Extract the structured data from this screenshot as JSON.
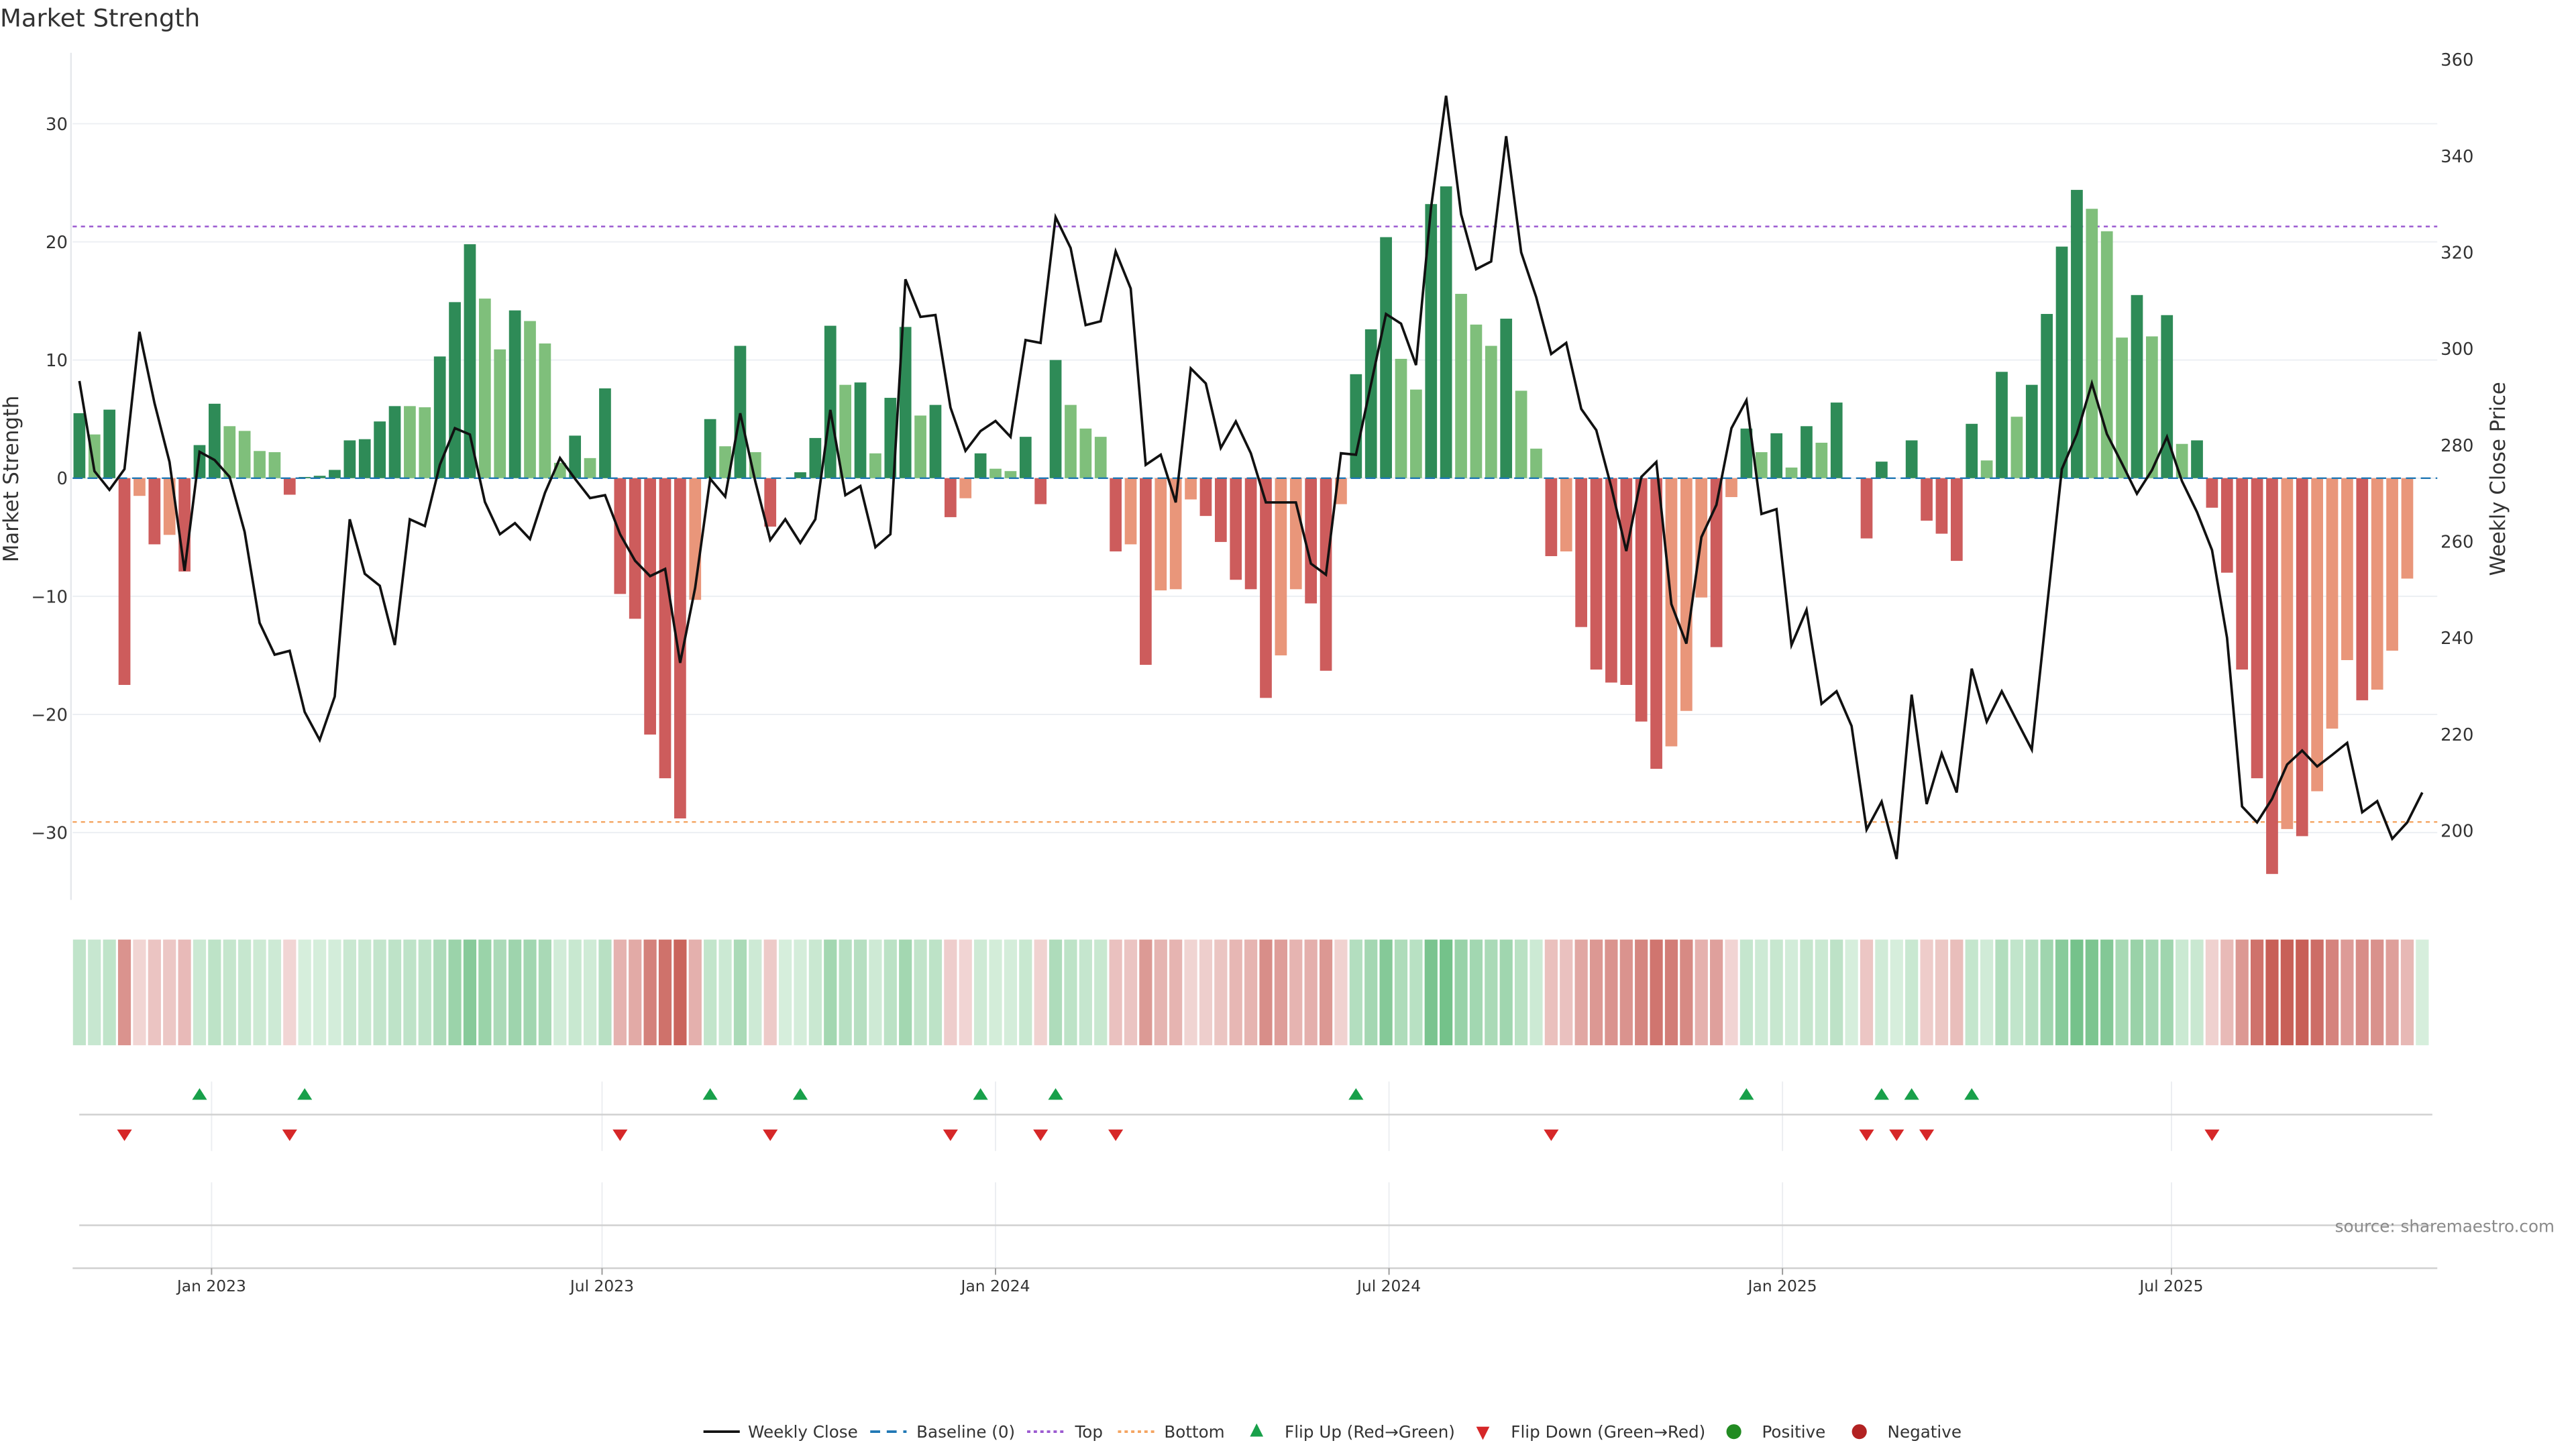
{
  "title": "Market Strength",
  "source": "source: sharemaestro.com",
  "colors": {
    "strong_green": "#2e8b57",
    "weak_green": "#7fbf7b",
    "strong_red": "#cd5c5c",
    "weak_red": "#e9967a",
    "line": "#111111",
    "baseline": "#1f77b4",
    "top": "#9b59d0",
    "bottom": "#f4a460",
    "flip_up": "#18a04a",
    "flip_down": "#d62728",
    "positive": "#228b22",
    "negative": "#b22222",
    "grid": "#eceff3"
  },
  "chart_data": {
    "type": "bar",
    "title": "Market Strength",
    "left_axis": {
      "label": "Market Strength",
      "range": [
        -35.7,
        36
      ],
      "ticks": [
        {
          "value": 30,
          "label": "30"
        },
        {
          "value": 20,
          "label": "20"
        },
        {
          "value": 10,
          "label": "10"
        },
        {
          "value": 0,
          "label": "0"
        },
        {
          "value": -10,
          "label": "−10"
        },
        {
          "value": -20,
          "label": "−20"
        },
        {
          "value": -30,
          "label": "−30"
        }
      ]
    },
    "right_axis": {
      "label": "Weekly Close Price",
      "range": [
        185.6,
        361.4
      ],
      "ticks": [
        {
          "value": 360,
          "label": "360"
        },
        {
          "value": 340,
          "label": "340"
        },
        {
          "value": 320,
          "label": "320"
        },
        {
          "value": 300,
          "label": "300"
        },
        {
          "value": 280,
          "label": "280"
        },
        {
          "value": 260,
          "label": "260"
        },
        {
          "value": 240,
          "label": "240"
        },
        {
          "value": 220,
          "label": "220"
        },
        {
          "value": 200,
          "label": "200"
        }
      ]
    },
    "x_axis": {
      "unit": "week index",
      "range": [
        -0.45,
        157
      ],
      "ticks": [
        {
          "week": 8.8,
          "label": "Jan 2023"
        },
        {
          "week": 34.8,
          "label": "Jul 2023"
        },
        {
          "week": 61.0,
          "label": "Jan 2024"
        },
        {
          "week": 87.2,
          "label": "Jul 2024"
        },
        {
          "week": 113.4,
          "label": "Jan 2025"
        },
        {
          "week": 139.3,
          "label": "Jul 2025"
        }
      ]
    },
    "grid": true,
    "top_level": 21.3,
    "bottom_level": -29.1,
    "strength": [
      5.5,
      3.7,
      5.8,
      -17.5,
      -1.5,
      -5.6,
      -4.8,
      -7.9,
      2.8,
      6.3,
      4.4,
      4.0,
      2.3,
      2.2,
      -1.4,
      0.1,
      0.2,
      0.7,
      3.2,
      3.3,
      4.8,
      6.1,
      6.1,
      6.0,
      10.3,
      14.9,
      19.8,
      15.2,
      10.9,
      14.2,
      13.3,
      11.4,
      1.3,
      3.6,
      1.7,
      7.6,
      -9.8,
      -11.9,
      -21.7,
      -25.4,
      -28.8,
      -10.3,
      5.0,
      2.7,
      11.2,
      2.2,
      -4.1,
      0,
      0.5,
      3.4,
      12.9,
      7.9,
      8.1,
      2.1,
      6.8,
      12.8,
      5.3,
      6.2,
      -3.3,
      -1.7,
      2.1,
      0.8,
      0.6,
      3.5,
      -2.2,
      10.0,
      6.2,
      4.2,
      3.5,
      -6.2,
      -5.6,
      -15.8,
      -9.5,
      -9.4,
      -1.8,
      -3.2,
      -5.4,
      -8.6,
      -9.4,
      -18.6,
      -15.0,
      -9.4,
      -10.6,
      -16.3,
      -2.2,
      8.8,
      12.6,
      20.4,
      10.1,
      7.5,
      23.2,
      24.7,
      15.6,
      13.0,
      11.2,
      13.5,
      7.4,
      2.5,
      -6.6,
      -6.2,
      -12.6,
      -16.2,
      -17.3,
      -17.5,
      -20.6,
      -24.6,
      -22.7,
      -19.7,
      -10.1,
      -14.3,
      -1.6,
      4.2,
      2.2,
      3.8,
      0.9,
      4.4,
      3.0,
      6.4,
      0,
      -5.1,
      1.4,
      0,
      3.2,
      -3.6,
      -4.7,
      -7.0,
      4.6,
      1.5,
      9.0,
      5.2,
      7.9,
      13.9,
      19.6,
      24.4,
      22.8,
      20.9,
      11.9,
      15.5,
      12.0,
      13.8,
      2.9,
      3.2,
      -2.5,
      -8.0,
      -16.2,
      -25.4,
      -33.5,
      -29.7,
      -30.3,
      -26.5,
      -21.2,
      -15.4,
      -18.8,
      -17.9,
      -14.6,
      -8.5,
      0
    ],
    "strength_class": "GgGRrRrRGGggggRGGGGGGGggGGGggGgggGgGRRRRRrGgGgRZGGGgGgGGgGRrGggGRGgggRrRrrrRRRRRrrRRrGGGggGGgggGggRrRRRRRRrrrRrGgGgGgGZRGZGRRRGgGgGGGGgggGgGgGRRRRRrRrrrRrrrZ",
    "strength_class_legend": {
      "G": "rising positive",
      "g": "falling positive",
      "R": "falling negative",
      "r": "rising negative",
      "Z": "zero"
    },
    "weekly_close": [
      293.3,
      274.6,
      270.7,
      275.0,
      303.5,
      288.7,
      276.5,
      253.9,
      278.6,
      276.9,
      273.4,
      262.0,
      243.1,
      236.5,
      237.3,
      224.6,
      218.8,
      227.8,
      264.6,
      253.3,
      250.8,
      238.5,
      264.6,
      263.2,
      275.9,
      283.5,
      282.2,
      268.2,
      261.5,
      263.8,
      260.5,
      270.1,
      277.3,
      273.0,
      269.0,
      269.6,
      261.5,
      256.0,
      252.8,
      254.3,
      234.8,
      250.4,
      273.0,
      269.3,
      286.6,
      272.5,
      260.3,
      264.6,
      259.7,
      264.6,
      287.3,
      269.6,
      271.5,
      258.8,
      261.5,
      314.4,
      306.6,
      307.0,
      287.8,
      278.8,
      282.9,
      285.0,
      281.7,
      301.8,
      301.2,
      327.3,
      320.9,
      304.9,
      305.7,
      320.2,
      312.5,
      275.9,
      278.0,
      268.1,
      295.9,
      292.8,
      279.4,
      284.9,
      278.3,
      268.1,
      268.1,
      268.1,
      255.4,
      253.1,
      278.3,
      278.0,
      292.6,
      307.2,
      305.2,
      296.6,
      329.3,
      352.5,
      327.9,
      316.5,
      318.1,
      344.1,
      320.0,
      310.7,
      298.9,
      301.2,
      287.5,
      283.1,
      271.3,
      258.0,
      273.4,
      276.5,
      247.0,
      238.8,
      260.9,
      267.6,
      283.5,
      289.3,
      265.7,
      266.7,
      238.5,
      245.8,
      226.3,
      228.9,
      221.7,
      200.2,
      206.0,
      194.1,
      228.2,
      205.5,
      216.0,
      207.9,
      233.6,
      222.6,
      228.9,
      222.8,
      216.8,
      246.0,
      275.0,
      282.3,
      292.8,
      282.3,
      276.2,
      269.9,
      274.8,
      281.7,
      272.5,
      266.1,
      258.2,
      240.0,
      205.0,
      201.7,
      206.6,
      213.7,
      216.6,
      213.3,
      215.7,
      218.2,
      203.8,
      206.1,
      198.3,
      201.7,
      207.9
    ],
    "flip_up_weeks": [
      8,
      15,
      42,
      48,
      60,
      65,
      85,
      111,
      120,
      122,
      126
    ],
    "flip_down_weeks": [
      3,
      14,
      36,
      46,
      58,
      64,
      69,
      98,
      119,
      121,
      123,
      142
    ],
    "legend_position": "bottom-center",
    "legend": [
      {
        "key": "weekly-close",
        "label": "Weekly Close"
      },
      {
        "key": "baseline",
        "label": "Baseline (0)"
      },
      {
        "key": "top",
        "label": "Top"
      },
      {
        "key": "bottom",
        "label": "Bottom"
      },
      {
        "key": "flip-up",
        "label": "Flip Up (Red→Green)"
      },
      {
        "key": "flip-down",
        "label": "Flip Down (Green→Red)"
      },
      {
        "key": "positive",
        "label": "Positive"
      },
      {
        "key": "negative",
        "label": "Negative"
      }
    ]
  }
}
